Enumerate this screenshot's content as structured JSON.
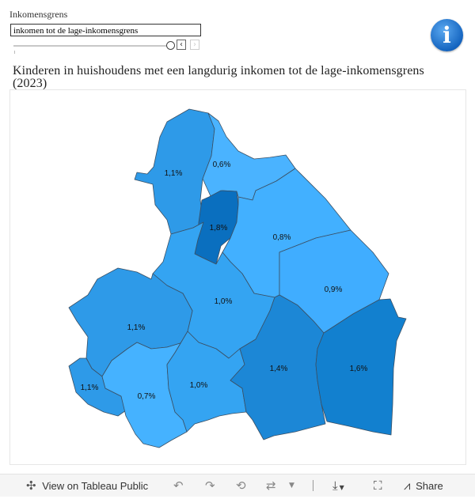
{
  "filter": {
    "label": "Inkomensgrens",
    "value": "inkomen tot de lage-inkomensgrens",
    "prev_symbol": "‹",
    "next_symbol": "›"
  },
  "info_icon": {
    "symbol": "i"
  },
  "title": "Kinderen in huishoudens met een langdurig inkomen tot de lage-inkomensgrens (2023)",
  "map": {
    "regions": [
      {
        "label": "1,1%",
        "color": "#2e9ae8"
      },
      {
        "label": "0,6%",
        "color": "#4ab3ff"
      },
      {
        "label": "1,8%",
        "color": "#0a6fbf"
      },
      {
        "label": "0,8%",
        "color": "#42b0ff"
      },
      {
        "label": "0,9%",
        "color": "#40adff"
      },
      {
        "label": "1,0%",
        "color": "#34a4f2"
      },
      {
        "label": "1,1%",
        "color": "#2e9ae8"
      },
      {
        "label": "1,1%",
        "color": "#2e9ae8"
      },
      {
        "label": "0,7%",
        "color": "#45b2ff"
      },
      {
        "label": "1,0%",
        "color": "#34a4f2"
      },
      {
        "label": "1,4%",
        "color": "#1c87d6"
      },
      {
        "label": "1,6%",
        "color": "#1280cf"
      }
    ]
  },
  "toolbar": {
    "view_label": "View on Tableau Public",
    "share_label": "Share"
  }
}
